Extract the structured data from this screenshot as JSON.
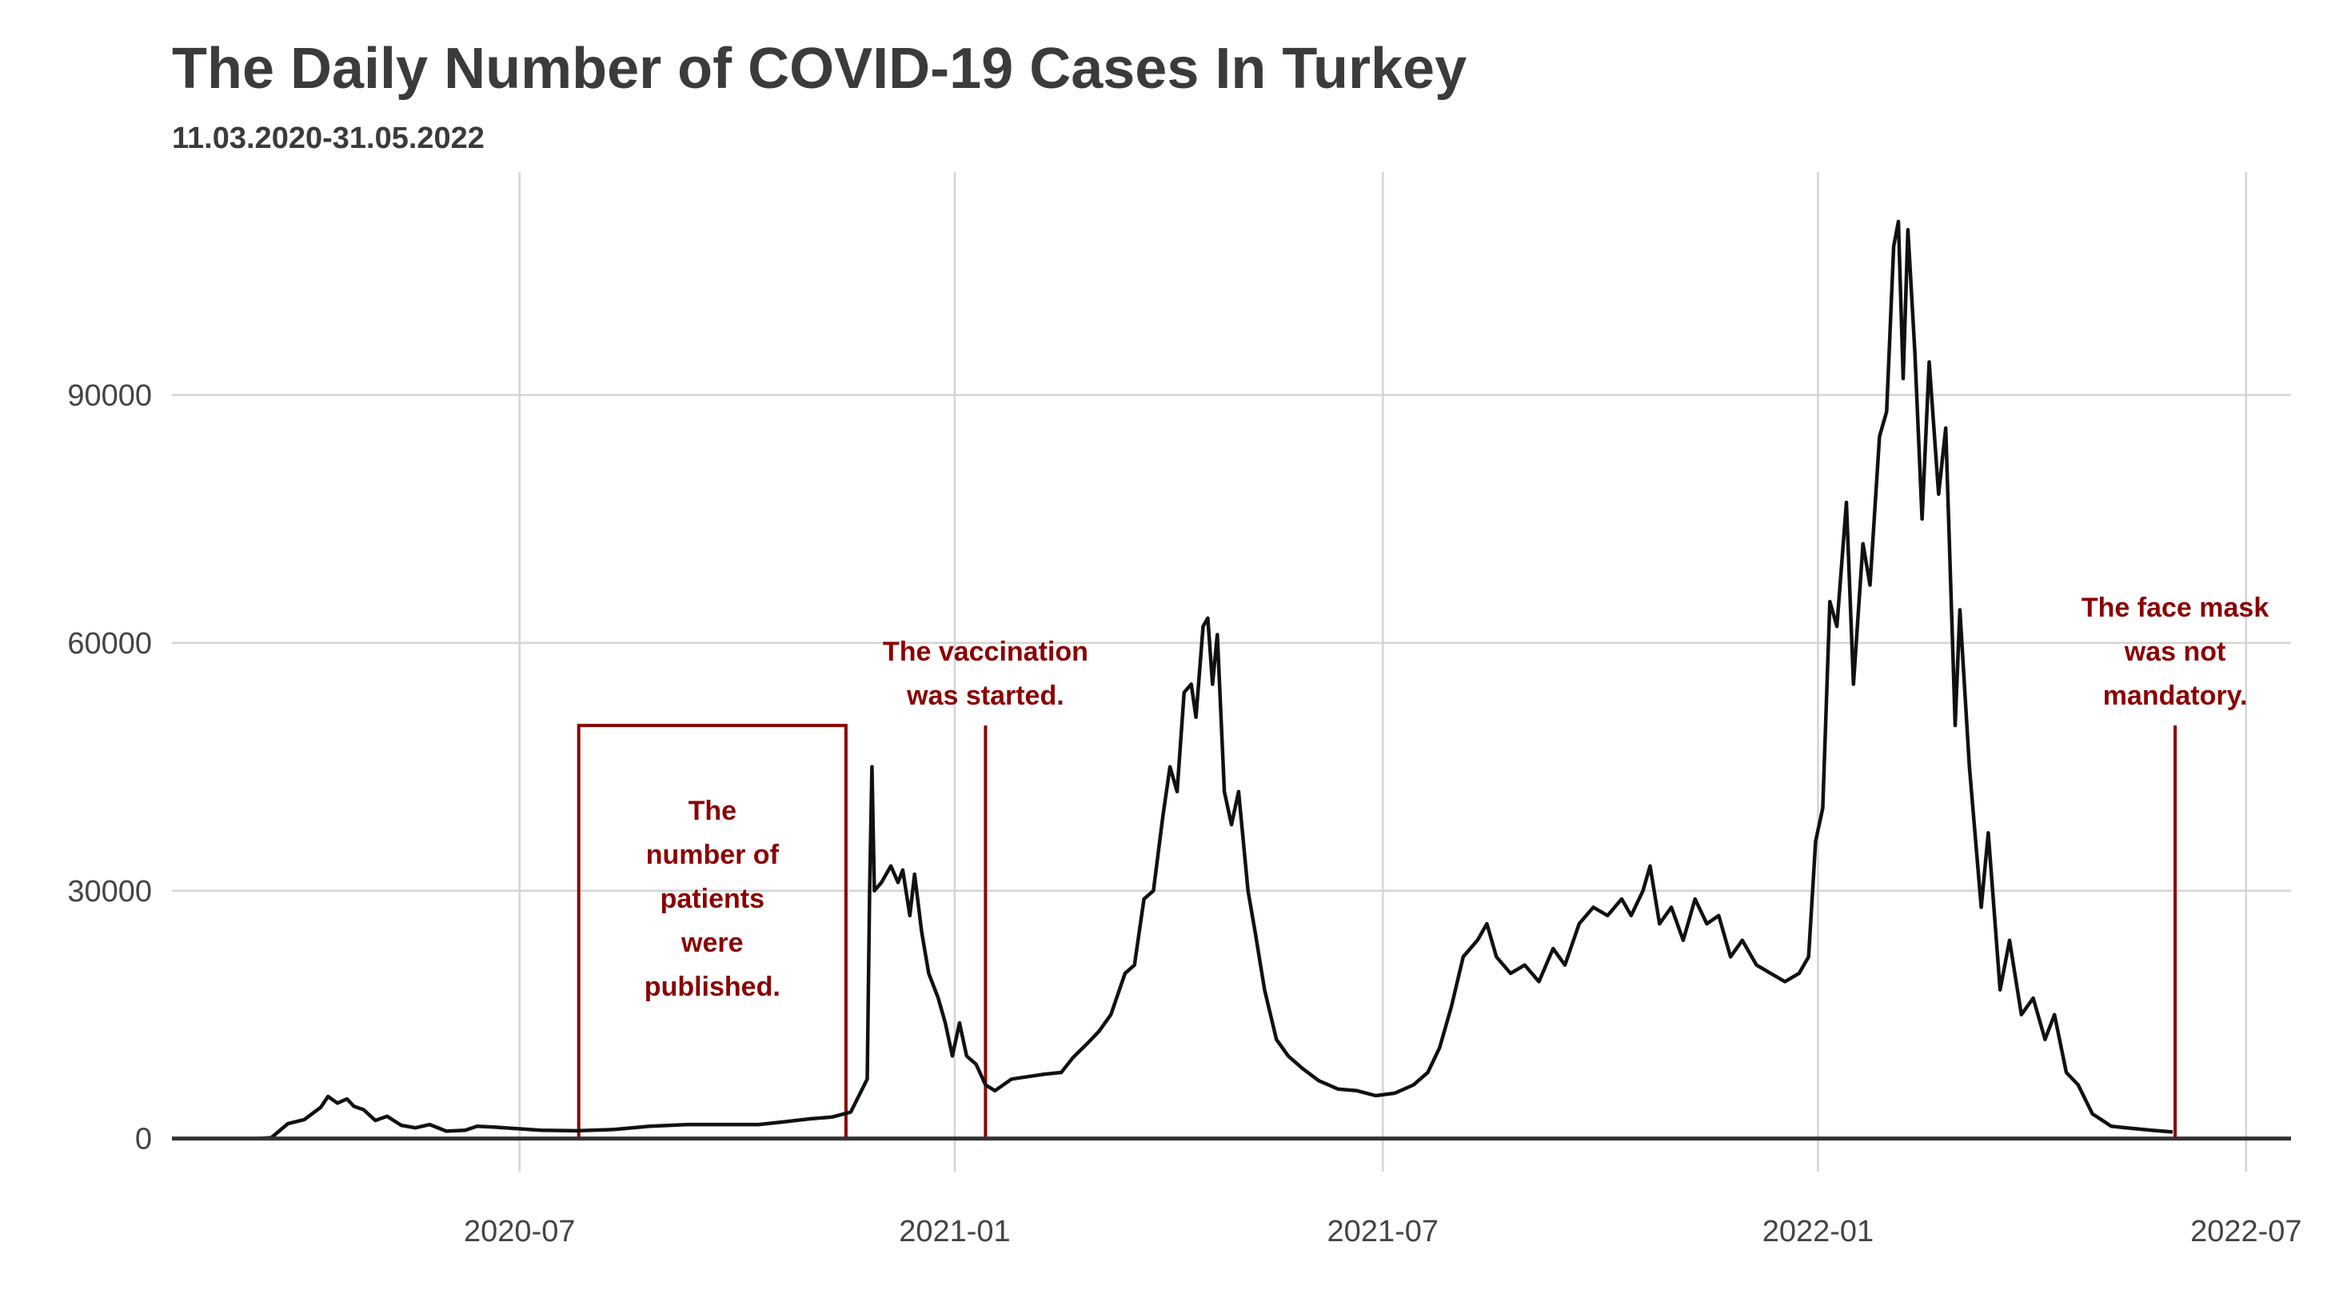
{
  "chart_data": {
    "type": "line",
    "title": "The Daily Number of COVID-19 Cases In Turkey",
    "subtitle": "11.03.2020-31.05.2022",
    "xlabel": "",
    "ylabel": "",
    "x_ticks": [
      "2020-07",
      "2021-01",
      "2021-07",
      "2022-01",
      "2022-07"
    ],
    "y_ticks": [
      0,
      30000,
      60000,
      90000
    ],
    "xlim": [
      "2020-02-05",
      "2022-07-20"
    ],
    "ylim": [
      -4000,
      117000
    ],
    "grid": true,
    "legend": "none",
    "line_color": "#111111",
    "annotation_color": "#8b0000",
    "series": [
      {
        "values": [
          [
            "2020-03-11",
            0
          ],
          [
            "2020-03-18",
            100
          ],
          [
            "2020-03-25",
            1800
          ],
          [
            "2020-04-01",
            2300
          ],
          [
            "2020-04-08",
            3800
          ],
          [
            "2020-04-11",
            5100
          ],
          [
            "2020-04-15",
            4300
          ],
          [
            "2020-04-19",
            4800
          ],
          [
            "2020-04-22",
            3900
          ],
          [
            "2020-04-26",
            3500
          ],
          [
            "2020-05-01",
            2200
          ],
          [
            "2020-05-06",
            2700
          ],
          [
            "2020-05-12",
            1600
          ],
          [
            "2020-05-18",
            1300
          ],
          [
            "2020-05-24",
            1700
          ],
          [
            "2020-05-31",
            900
          ],
          [
            "2020-06-08",
            1000
          ],
          [
            "2020-06-13",
            1500
          ],
          [
            "2020-06-20",
            1400
          ],
          [
            "2020-06-30",
            1200
          ],
          [
            "2020-07-10",
            1000
          ],
          [
            "2020-07-25",
            950
          ],
          [
            "2020-08-10",
            1100
          ],
          [
            "2020-08-25",
            1500
          ],
          [
            "2020-09-10",
            1700
          ],
          [
            "2020-09-25",
            1700
          ],
          [
            "2020-10-10",
            1700
          ],
          [
            "2020-10-20",
            2000
          ],
          [
            "2020-11-01",
            2400
          ],
          [
            "2020-11-10",
            2600
          ],
          [
            "2020-11-18",
            3200
          ],
          [
            "2020-11-22",
            5500
          ],
          [
            "2020-11-25",
            7200
          ],
          [
            "2020-11-26",
            30000
          ],
          [
            "2020-11-27",
            45000
          ],
          [
            "2020-11-28",
            30000
          ],
          [
            "2020-12-01",
            31000
          ],
          [
            "2020-12-05",
            33000
          ],
          [
            "2020-12-08",
            31000
          ],
          [
            "2020-12-10",
            32500
          ],
          [
            "2020-12-13",
            27000
          ],
          [
            "2020-12-15",
            32000
          ],
          [
            "2020-12-18",
            25000
          ],
          [
            "2020-12-21",
            20000
          ],
          [
            "2020-12-25",
            17000
          ],
          [
            "2020-12-28",
            14000
          ],
          [
            "2020-12-31",
            10000
          ],
          [
            "2021-01-03",
            14000
          ],
          [
            "2021-01-06",
            10000
          ],
          [
            "2021-01-10",
            9000
          ],
          [
            "2021-01-14",
            6500
          ],
          [
            "2021-01-18",
            5800
          ],
          [
            "2021-01-25",
            7200
          ],
          [
            "2021-02-01",
            7500
          ],
          [
            "2021-02-08",
            7800
          ],
          [
            "2021-02-15",
            8000
          ],
          [
            "2021-02-20",
            9800
          ],
          [
            "2021-02-26",
            11500
          ],
          [
            "2021-03-03",
            13000
          ],
          [
            "2021-03-08",
            15000
          ],
          [
            "2021-03-14",
            20000
          ],
          [
            "2021-03-18",
            21000
          ],
          [
            "2021-03-22",
            29000
          ],
          [
            "2021-03-26",
            30000
          ],
          [
            "2021-03-30",
            39000
          ],
          [
            "2021-04-02",
            45000
          ],
          [
            "2021-04-05",
            42000
          ],
          [
            "2021-04-08",
            54000
          ],
          [
            "2021-04-11",
            55000
          ],
          [
            "2021-04-13",
            51000
          ],
          [
            "2021-04-16",
            62000
          ],
          [
            "2021-04-18",
            63000
          ],
          [
            "2021-04-20",
            55000
          ],
          [
            "2021-04-22",
            61000
          ],
          [
            "2021-04-25",
            42000
          ],
          [
            "2021-04-28",
            38000
          ],
          [
            "2021-05-01",
            42000
          ],
          [
            "2021-05-05",
            30000
          ],
          [
            "2021-05-08",
            25000
          ],
          [
            "2021-05-12",
            18000
          ],
          [
            "2021-05-17",
            12000
          ],
          [
            "2021-05-22",
            10000
          ],
          [
            "2021-05-28",
            8500
          ],
          [
            "2021-06-04",
            7000
          ],
          [
            "2021-06-12",
            6000
          ],
          [
            "2021-06-20",
            5800
          ],
          [
            "2021-06-28",
            5200
          ],
          [
            "2021-07-06",
            5500
          ],
          [
            "2021-07-14",
            6500
          ],
          [
            "2021-07-20",
            8000
          ],
          [
            "2021-07-25",
            11000
          ],
          [
            "2021-07-30",
            16000
          ],
          [
            "2021-08-04",
            22000
          ],
          [
            "2021-08-10",
            24000
          ],
          [
            "2021-08-14",
            26000
          ],
          [
            "2021-08-18",
            22000
          ],
          [
            "2021-08-24",
            20000
          ],
          [
            "2021-08-30",
            21000
          ],
          [
            "2021-09-05",
            19000
          ],
          [
            "2021-09-11",
            23000
          ],
          [
            "2021-09-16",
            21000
          ],
          [
            "2021-09-22",
            26000
          ],
          [
            "2021-09-28",
            28000
          ],
          [
            "2021-10-04",
            27000
          ],
          [
            "2021-10-10",
            29000
          ],
          [
            "2021-10-14",
            27000
          ],
          [
            "2021-10-19",
            30000
          ],
          [
            "2021-10-22",
            33000
          ],
          [
            "2021-10-26",
            26000
          ],
          [
            "2021-10-31",
            28000
          ],
          [
            "2021-11-05",
            24000
          ],
          [
            "2021-11-10",
            29000
          ],
          [
            "2021-11-15",
            26000
          ],
          [
            "2021-11-20",
            27000
          ],
          [
            "2021-11-25",
            22000
          ],
          [
            "2021-11-30",
            24000
          ],
          [
            "2021-12-06",
            21000
          ],
          [
            "2021-12-12",
            20000
          ],
          [
            "2021-12-18",
            19000
          ],
          [
            "2021-12-24",
            20000
          ],
          [
            "2021-12-28",
            22000
          ],
          [
            "2021-12-31",
            36000
          ],
          [
            "2022-01-03",
            40000
          ],
          [
            "2022-01-06",
            65000
          ],
          [
            "2022-01-09",
            62000
          ],
          [
            "2022-01-13",
            77000
          ],
          [
            "2022-01-16",
            55000
          ],
          [
            "2022-01-20",
            72000
          ],
          [
            "2022-01-23",
            67000
          ],
          [
            "2022-01-27",
            85000
          ],
          [
            "2022-01-30",
            88000
          ],
          [
            "2022-02-02",
            108000
          ],
          [
            "2022-02-04",
            111000
          ],
          [
            "2022-02-06",
            92000
          ],
          [
            "2022-02-08",
            110000
          ],
          [
            "2022-02-11",
            95000
          ],
          [
            "2022-02-14",
            75000
          ],
          [
            "2022-02-17",
            94000
          ],
          [
            "2022-02-21",
            78000
          ],
          [
            "2022-02-24",
            86000
          ],
          [
            "2022-02-28",
            50000
          ],
          [
            "2022-03-02",
            64000
          ],
          [
            "2022-03-06",
            45000
          ],
          [
            "2022-03-11",
            28000
          ],
          [
            "2022-03-14",
            37000
          ],
          [
            "2022-03-19",
            18000
          ],
          [
            "2022-03-23",
            24000
          ],
          [
            "2022-03-28",
            15000
          ],
          [
            "2022-04-02",
            17000
          ],
          [
            "2022-04-07",
            12000
          ],
          [
            "2022-04-11",
            15000
          ],
          [
            "2022-04-16",
            8000
          ],
          [
            "2022-04-21",
            6500
          ],
          [
            "2022-04-27",
            3000
          ],
          [
            "2022-05-05",
            1500
          ],
          [
            "2022-05-15",
            1200
          ],
          [
            "2022-05-22",
            1000
          ],
          [
            "2022-05-31",
            800
          ]
        ]
      }
    ],
    "annotations": [
      {
        "type": "box",
        "x_start": "2020-07-26",
        "x_end": "2020-11-16",
        "y_top": 50000,
        "lines": [
          "The",
          "number of",
          "patients",
          "were",
          "published."
        ]
      },
      {
        "type": "vline",
        "x": "2021-01-14",
        "y_top": 50000,
        "lines": [
          "The vaccination",
          "was started."
        ]
      },
      {
        "type": "vline",
        "x": "2022-06-01",
        "y_top": 50000,
        "lines": [
          "The face mask",
          "was not",
          "mandatory."
        ]
      }
    ]
  }
}
